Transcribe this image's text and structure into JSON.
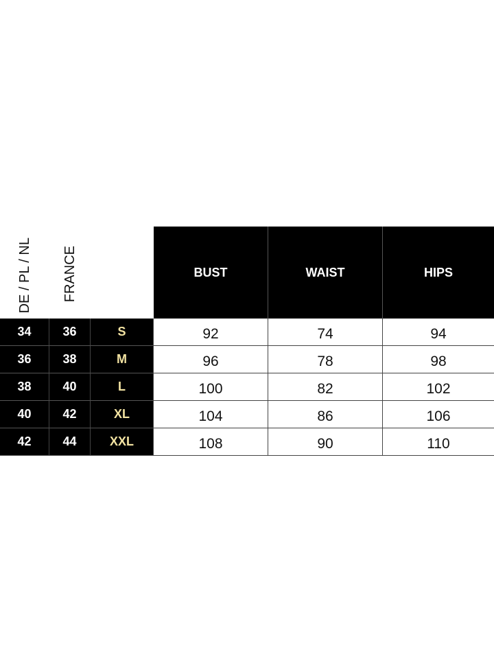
{
  "table": {
    "region_headers": [
      "DE / PL / NL",
      "FRANCE"
    ],
    "measure_headers": [
      "BUST",
      "WAIST",
      "HIPS"
    ],
    "rows": [
      {
        "de": "34",
        "fr": "36",
        "size": "S",
        "bust": "92",
        "waist": "74",
        "hips": "94"
      },
      {
        "de": "36",
        "fr": "38",
        "size": "M",
        "bust": "96",
        "waist": "78",
        "hips": "98"
      },
      {
        "de": "38",
        "fr": "40",
        "size": "L",
        "bust": "100",
        "waist": "82",
        "hips": "102"
      },
      {
        "de": "40",
        "fr": "42",
        "size": "XL",
        "bust": "104",
        "waist": "86",
        "hips": "106"
      },
      {
        "de": "42",
        "fr": "44",
        "size": "XXL",
        "bust": "108",
        "waist": "90",
        "hips": "110"
      }
    ]
  },
  "colors": {
    "header_bg": "#000000",
    "size_label": "#f3e3a2"
  }
}
